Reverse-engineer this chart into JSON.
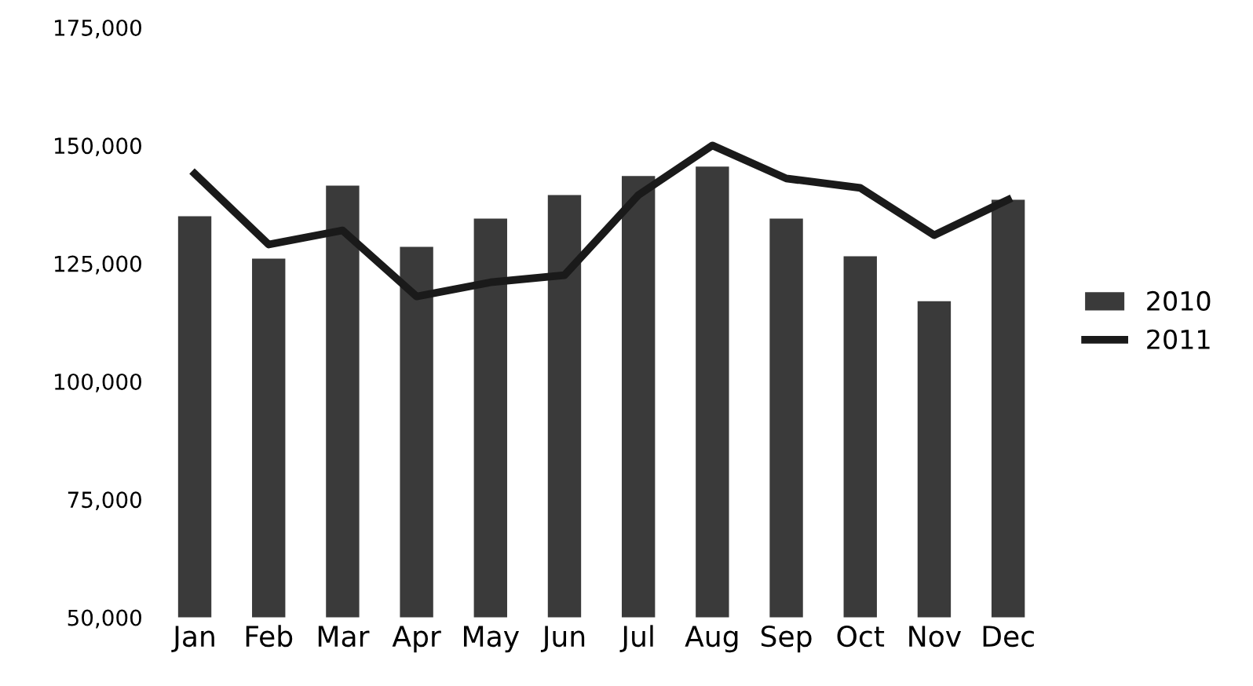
{
  "chart_data": {
    "type": "bar",
    "categories": [
      "Jan",
      "Feb",
      "Mar",
      "Apr",
      "May",
      "Jun",
      "Jul",
      "Aug",
      "Sep",
      "Oct",
      "Nov",
      "Dec"
    ],
    "series": [
      {
        "name": "2010",
        "color": "#3a3a3a",
        "values": [
          135000,
          126000,
          141500,
          128500,
          134500,
          139500,
          143500,
          145500,
          134500,
          126500,
          117000,
          138500
        ]
      },
      {
        "name": "2011",
        "type": "line",
        "color": "#1a1a1a",
        "values": [
          144000,
          129000,
          132000,
          118000,
          121000,
          122500,
          139500,
          150000,
          143000,
          141000,
          131000,
          138500
        ]
      }
    ],
    "ylim": [
      50000,
      175000
    ],
    "yticks": [
      {
        "value": 50000,
        "label": "50,000"
      },
      {
        "value": 75000,
        "label": "75,000"
      },
      {
        "value": 100000,
        "label": "100,000"
      },
      {
        "value": 125000,
        "label": "125,000"
      },
      {
        "value": 150000,
        "label": "150,000"
      },
      {
        "value": 175000,
        "label": "175,000"
      }
    ],
    "legend": "right",
    "grid": false,
    "marker": "none",
    "line_style": "solid"
  }
}
